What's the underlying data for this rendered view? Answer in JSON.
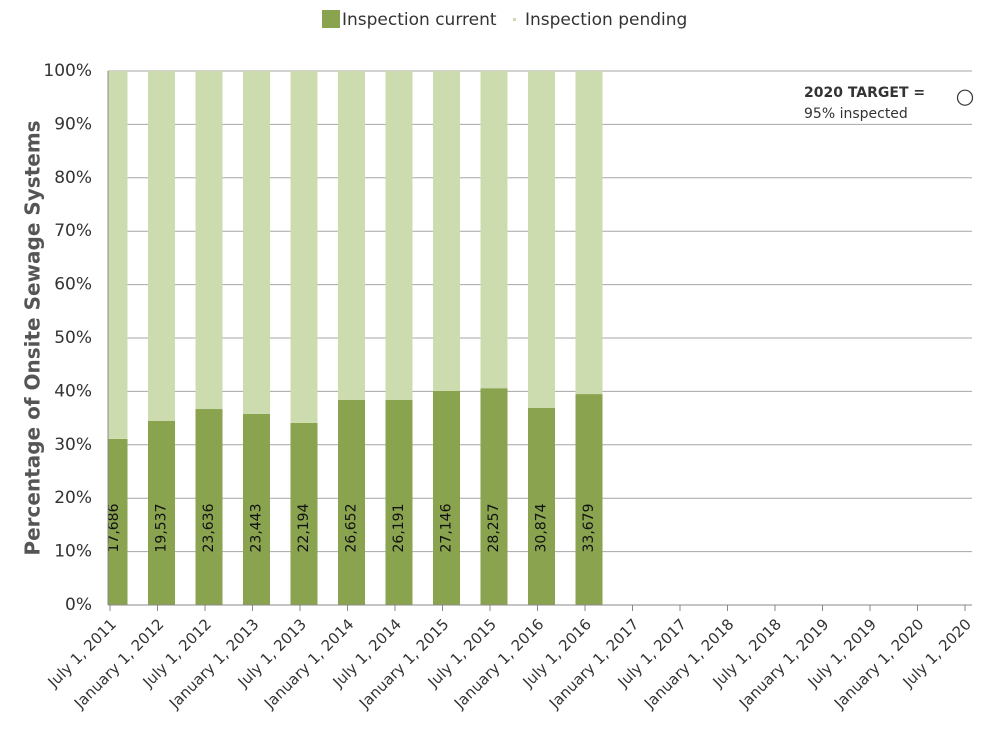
{
  "chart_data": {
    "type": "stacked_bar",
    "y_axis_label": "Percentage of Onsite Sewage Systems",
    "categories": [
      "July 1, 2011",
      "January 1, 2012",
      "July 1, 2012",
      "January 1, 2013",
      "July 1, 2013",
      "January 1, 2014",
      "July 1, 2014",
      "January 1, 2015",
      "July 1, 2015",
      "January 1, 2016",
      "July 1, 2016",
      "January 1, 2017",
      "July 1, 2017",
      "January 1, 2018",
      "July 1, 2018",
      "January 1, 2019",
      "July 1, 2019",
      "January 1, 2020",
      "July 1, 2020"
    ],
    "series": [
      {
        "name": "Inspection current",
        "color": "#8aa34e",
        "values": [
          31.1,
          34.5,
          36.7,
          35.8,
          34.1,
          38.4,
          38.4,
          40.1,
          40.6,
          36.9,
          39.5,
          null,
          null,
          null,
          null,
          null,
          null,
          null,
          null
        ],
        "count_labels": [
          "17,686",
          "19,537",
          "23,636",
          "23,443",
          "22,194",
          "26,652",
          "26,191",
          "27,146",
          "28,257",
          "30,874",
          "33,679",
          null,
          null,
          null,
          null,
          null,
          null,
          null,
          null
        ]
      },
      {
        "name": "Inspection pending",
        "color": "#cddcae",
        "values": [
          68.9,
          65.5,
          63.3,
          64.2,
          65.9,
          61.6,
          61.6,
          59.9,
          59.4,
          63.1,
          60.5,
          null,
          null,
          null,
          null,
          null,
          null,
          null,
          null
        ]
      }
    ],
    "target": {
      "title": "2020 TARGET =",
      "text": "95% inspected",
      "value": 95
    },
    "ylim": [
      0,
      100
    ],
    "yticks": [
      {
        "value": 0,
        "label": "0%"
      },
      {
        "value": 10,
        "label": "10%"
      },
      {
        "value": 20,
        "label": "20%"
      },
      {
        "value": 30,
        "label": "30%"
      },
      {
        "value": 40,
        "label": "40%"
      },
      {
        "value": 50,
        "label": "50%"
      },
      {
        "value": 60,
        "label": "60%"
      },
      {
        "value": 70,
        "label": "70%"
      },
      {
        "value": 80,
        "label": "80%"
      },
      {
        "value": 90,
        "label": "90%"
      },
      {
        "value": 100,
        "label": "100%"
      }
    ],
    "grid": true
  }
}
